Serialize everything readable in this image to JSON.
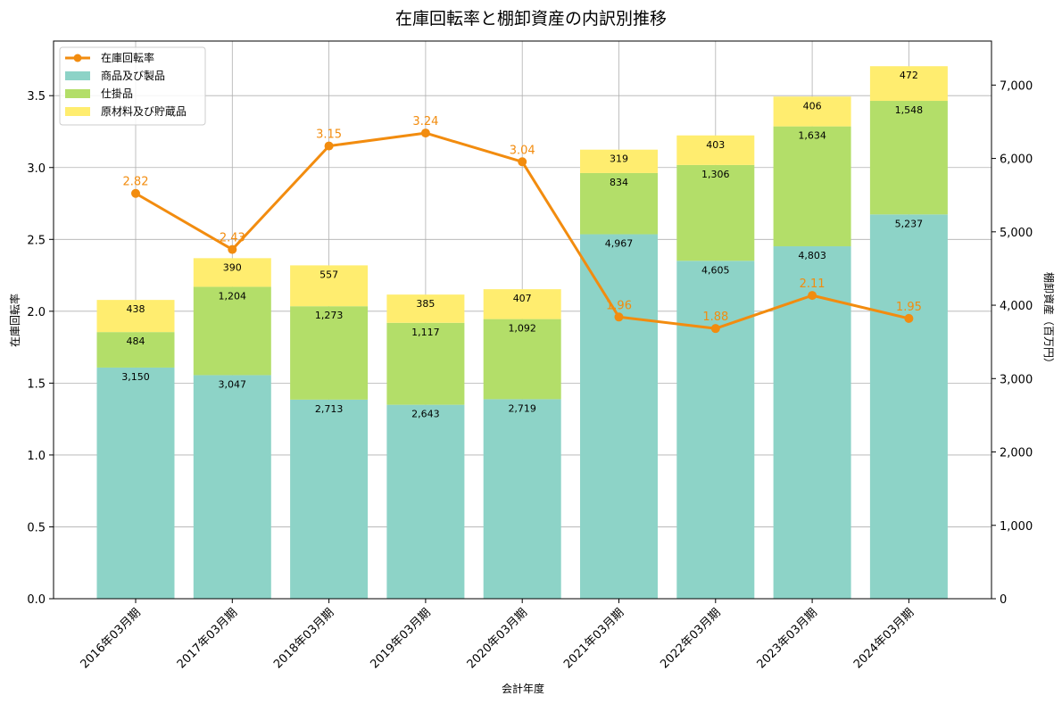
{
  "chart_data": {
    "type": "bar",
    "title": "在庫回転率と棚卸資産の内訳別推移",
    "xlabel": "会計年度",
    "ylabel_left": "在庫回転率",
    "ylabel_right": "棚卸資産（百万円）",
    "categories": [
      "2016年03月期",
      "2017年03月期",
      "2018年03月期",
      "2019年03月期",
      "2020年03月期",
      "2021年03月期",
      "2022年03月期",
      "2023年03月期",
      "2024年03月期"
    ],
    "ylim_left": [
      0,
      3.88
    ],
    "ylim_right": [
      0,
      7600
    ],
    "left_ticks": [
      "0.0",
      "0.5",
      "1.0",
      "1.5",
      "2.0",
      "2.5",
      "3.0",
      "3.5"
    ],
    "left_tick_values": [
      0,
      0.5,
      1.0,
      1.5,
      2.0,
      2.5,
      3.0,
      3.5
    ],
    "right_ticks": [
      "0",
      "1,000",
      "2,000",
      "3,000",
      "4,000",
      "5,000",
      "6,000",
      "7,000"
    ],
    "right_tick_values": [
      0,
      1000,
      2000,
      3000,
      4000,
      5000,
      6000,
      7000
    ],
    "grid": true,
    "legend_position": "top-left",
    "series": [
      {
        "name": "商品及び製品",
        "kind": "stacked-bar",
        "axis": "right",
        "color": "#8dd3c7",
        "values": [
          3150,
          3047,
          2713,
          2643,
          2719,
          4967,
          4605,
          4803,
          5237
        ],
        "labels": [
          "3,150",
          "3,047",
          "2,713",
          "2,643",
          "2,719",
          "4,967",
          "4,605",
          "4,803",
          "5,237"
        ]
      },
      {
        "name": "仕掛品",
        "kind": "stacked-bar",
        "axis": "right",
        "color": "#b3de69",
        "values": [
          484,
          1204,
          1273,
          1117,
          1092,
          834,
          1306,
          1634,
          1548
        ],
        "labels": [
          "484",
          "1,204",
          "1,273",
          "1,117",
          "1,092",
          "834",
          "1,306",
          "1,634",
          "1,548"
        ]
      },
      {
        "name": "原材料及び貯蔵品",
        "kind": "stacked-bar",
        "axis": "right",
        "color": "#ffed6f",
        "values": [
          438,
          390,
          557,
          385,
          407,
          319,
          403,
          406,
          472
        ],
        "labels": [
          "438",
          "390",
          "557",
          "385",
          "407",
          "319",
          "403",
          "406",
          "472"
        ]
      },
      {
        "name": "在庫回転率",
        "kind": "line",
        "axis": "left",
        "color": "#f28c0f",
        "values": [
          2.82,
          2.43,
          3.15,
          3.24,
          3.04,
          1.96,
          1.88,
          2.11,
          1.95
        ],
        "labels": [
          "2.82",
          "2.43",
          "3.15",
          "3.24",
          "3.04",
          "1.96",
          "1.88",
          "2.11",
          "1.95"
        ]
      }
    ]
  }
}
